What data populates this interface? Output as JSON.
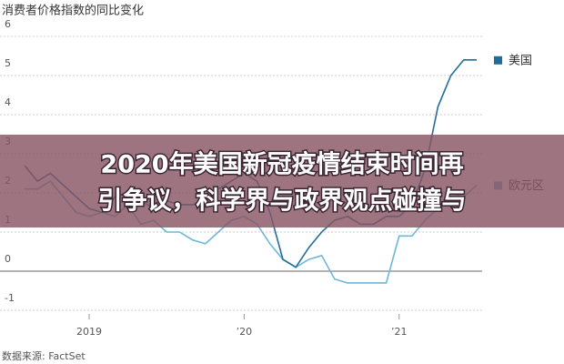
{
  "chart_data": {
    "type": "line",
    "title": "消费者价格指数的同比变化",
    "source": "数据来源: FactSet",
    "categories": [
      null,
      null,
      null,
      null,
      null,
      "2019",
      null,
      null,
      null,
      null,
      null,
      null,
      null,
      null,
      null,
      null,
      null,
      "’20",
      null,
      null,
      null,
      null,
      null,
      null,
      null,
      null,
      null,
      null,
      null,
      "’21",
      null,
      null,
      null,
      null,
      null,
      null
    ],
    "series": [
      {
        "name": "美国",
        "color": "#1f6e99",
        "values": [
          2.7,
          2.3,
          2.5,
          2.2,
          1.9,
          1.6,
          1.5,
          1.9,
          2.0,
          1.8,
          1.6,
          1.8,
          1.7,
          1.7,
          1.8,
          2.1,
          2.3,
          2.5,
          2.3,
          1.5,
          0.3,
          0.1,
          0.6,
          1.0,
          1.3,
          1.4,
          1.2,
          1.2,
          1.4,
          1.4,
          1.7,
          2.6,
          4.2,
          5.0,
          5.4,
          5.4
        ]
      },
      {
        "name": "欧元区",
        "color": "#6db7d9",
        "values": [
          2.1,
          2.1,
          2.3,
          1.9,
          1.5,
          1.4,
          1.5,
          1.4,
          1.7,
          1.2,
          1.3,
          1.0,
          1.0,
          0.8,
          0.7,
          1.0,
          1.3,
          1.4,
          1.2,
          0.7,
          0.3,
          0.1,
          0.3,
          0.4,
          -0.2,
          -0.3,
          -0.3,
          -0.3,
          -0.3,
          0.9,
          0.9,
          1.3,
          1.6,
          2.0,
          1.9,
          2.2
        ]
      }
    ],
    "ylim": [
      -1,
      6
    ],
    "yticks": [
      6,
      5,
      4,
      3,
      2,
      1,
      0,
      -1
    ],
    "grid": true
  },
  "overlay_text": [
    "2020年美国新冠疫情结束时间再",
    "引争议，科学界与政界观点碰撞与"
  ]
}
